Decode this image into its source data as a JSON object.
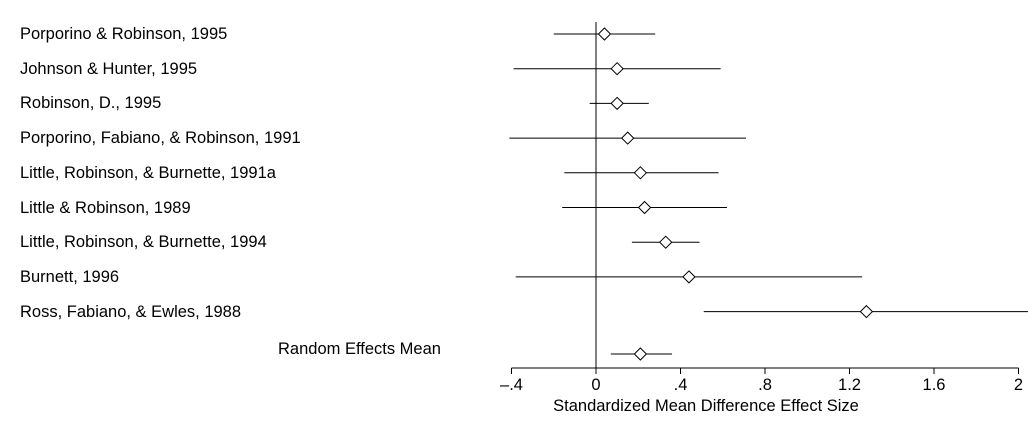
{
  "chart_data": {
    "type": "forest",
    "xlabel": "Standardized Mean Difference Effect Size",
    "xlim": [
      -0.4,
      2.05
    ],
    "xticks": [
      -0.4,
      0,
      0.4,
      0.8,
      1.2,
      1.6,
      2
    ],
    "xtick_labels": [
      "-.4",
      "0",
      ".4",
      ".8",
      "1.2",
      "1.6",
      "2"
    ],
    "reference_line": 0,
    "studies": [
      {
        "label": "Porporino & Robinson, 1995",
        "estimate": 0.04,
        "lower": -0.2,
        "upper": 0.28
      },
      {
        "label": "Johnson & Hunter, 1995",
        "estimate": 0.1,
        "lower": -0.39,
        "upper": 0.59
      },
      {
        "label": "Robinson, D., 1995",
        "estimate": 0.1,
        "lower": -0.03,
        "upper": 0.25
      },
      {
        "label": "Porporino, Fabiano, & Robinson, 1991",
        "estimate": 0.15,
        "lower": -0.41,
        "upper": 0.71
      },
      {
        "label": "Little, Robinson, & Burnette, 1991a",
        "estimate": 0.21,
        "lower": -0.15,
        "upper": 0.58
      },
      {
        "label": "Little & Robinson, 1989",
        "estimate": 0.23,
        "lower": -0.16,
        "upper": 0.62
      },
      {
        "label": "Little, Robinson, & Burnette, 1994",
        "estimate": 0.33,
        "lower": 0.17,
        "upper": 0.49
      },
      {
        "label": "Burnett, 1996",
        "estimate": 0.44,
        "lower": -0.38,
        "upper": 1.26
      },
      {
        "label": "Ross, Fabiano, & Ewles, 1988",
        "estimate": 1.28,
        "lower": 0.51,
        "upper": 2.05
      }
    ],
    "summary": {
      "label": "Random Effects Mean",
      "estimate": 0.21,
      "lower": 0.07,
      "upper": 0.36
    }
  }
}
